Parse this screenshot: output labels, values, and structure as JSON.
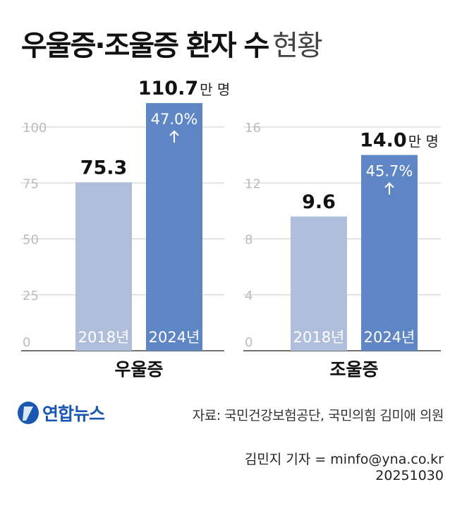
{
  "title": {
    "main": "우울증·조울증 환자 수",
    "sub": "현황"
  },
  "chart_data": [
    {
      "type": "bar",
      "group_label": "우울증",
      "categories": [
        "2018년",
        "2024년"
      ],
      "values": [
        75.3,
        110.7
      ],
      "value_labels": [
        "75.3",
        "110.7"
      ],
      "unit": "만 명",
      "change_label": "47.0%",
      "yticks": [
        "0",
        "25",
        "50",
        "75",
        "100"
      ],
      "ylim": [
        0,
        100
      ],
      "colors": [
        "#afbfdb",
        "#5e86c4"
      ]
    },
    {
      "type": "bar",
      "group_label": "조울증",
      "categories": [
        "2018년",
        "2024년"
      ],
      "values": [
        9.6,
        14.0
      ],
      "value_labels": [
        "9.6",
        "14.0"
      ],
      "unit": "만 명",
      "change_label": "45.7%",
      "yticks": [
        "0",
        "4",
        "8",
        "12",
        "16"
      ],
      "ylim": [
        0,
        16
      ],
      "colors": [
        "#afbfdb",
        "#5e86c4"
      ]
    }
  ],
  "logo": {
    "name": "연합뉴스"
  },
  "source": "자료: 국민건강보험공단, 국민의힘 김미애 의원",
  "credit": {
    "reporter": "김민지 기자 = minfo@yna.co.kr",
    "date": "20251030"
  }
}
